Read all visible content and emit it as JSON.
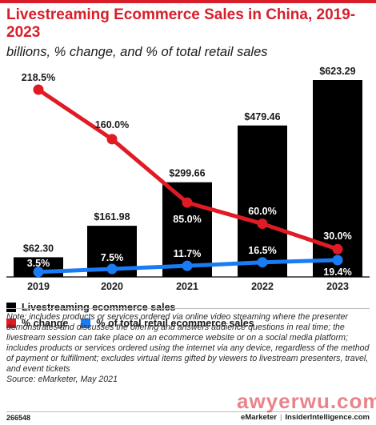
{
  "header": {
    "title": "Livestreaming Ecommerce Sales in China, 2019-2023",
    "subtitle": "billions, % change, and % of total retail sales"
  },
  "chart_data": {
    "type": "bar",
    "categories": [
      "2019",
      "2020",
      "2021",
      "2022",
      "2023"
    ],
    "series": [
      {
        "name": "Livestreaming ecommerce sales",
        "type": "bar",
        "values": [
          62.3,
          161.98,
          299.66,
          479.46,
          623.29
        ],
        "labels": [
          "$62.30",
          "$161.98",
          "$299.66",
          "$479.46",
          "$623.29"
        ],
        "color": "#000000"
      },
      {
        "name": "% change",
        "type": "line",
        "values": [
          218.5,
          160.0,
          85.0,
          60.0,
          30.0
        ],
        "labels": [
          "218.5%",
          "160.0%",
          "85.0%",
          "60.0%",
          "30.0%"
        ],
        "color": "#e01b24"
      },
      {
        "name": "% of total retail ecommerce sales",
        "type": "line",
        "values": [
          3.5,
          7.5,
          11.7,
          16.5,
          19.4
        ],
        "labels": [
          "3.5%",
          "7.5%",
          "11.7%",
          "16.5%",
          "19.4%"
        ],
        "color": "#1a7cf5"
      }
    ]
  },
  "legend": {
    "bar_label": "Livestreaming ecommerce sales",
    "change_label": "% change",
    "share_label": "% of total retail ecommerce sales"
  },
  "note": "Note: includes products or services ordered via online video streaming where the presenter demonstrates and discusses the offering and answers audience questions in real time; the livestream session can take place on an ecommerce website or on a social media platform; includes products or services ordered using the internet via any device, regardless of the method of payment or fulfillment; excludes virtual items gifted by viewers to livestream presenters, travel, and event tickets",
  "source": "Source: eMarketer, May 2021",
  "footer": {
    "chart_id": "266548",
    "brand_left": "eMarketer",
    "brand_sep": "|",
    "brand_right": "InsiderIntelligence.com"
  },
  "watermark": "awyerwu.com"
}
